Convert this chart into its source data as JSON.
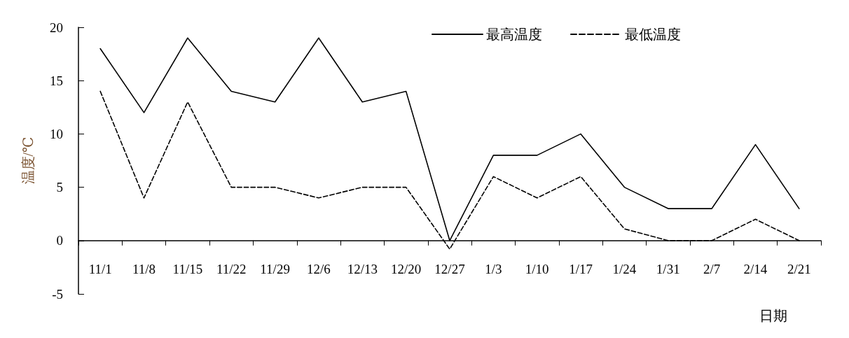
{
  "chart_data": {
    "type": "line",
    "xlabel": "日期",
    "ylabel": "温度/℃",
    "categories": [
      "11/1",
      "11/8",
      "11/15",
      "11/22",
      "11/29",
      "12/6",
      "12/13",
      "12/20",
      "12/27",
      "1/3",
      "1/10",
      "1/17",
      "1/24",
      "1/31",
      "2/7",
      "2/14",
      "2/21"
    ],
    "series": [
      {
        "name": "最高温度",
        "color": "#000000",
        "line_style": "solid",
        "values": [
          18,
          12,
          19,
          14,
          13,
          19,
          13,
          14,
          0,
          8,
          8,
          10,
          5,
          3,
          3,
          9,
          3
        ]
      },
      {
        "name": "最低温度",
        "color": "#000000",
        "line_style": "dashed",
        "values": [
          14,
          4,
          13,
          5,
          5,
          4,
          5,
          5,
          -0.8,
          6,
          4,
          6,
          1.1,
          0,
          0,
          2,
          0
        ]
      }
    ],
    "ylim": [
      -5,
      20
    ],
    "yticks": [
      -5,
      0,
      5,
      10,
      15,
      20
    ],
    "grid": false,
    "legend": "top right",
    "marker": "none"
  }
}
